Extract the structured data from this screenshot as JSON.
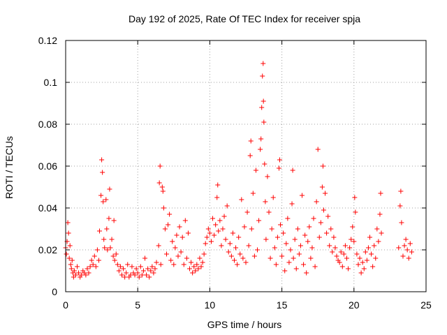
{
  "chart_data": {
    "type": "scatter",
    "title": "Day 192 of 2025, Rate Of TEC Index for receiver spja",
    "xlabel": "GPS time / hours",
    "ylabel": "ROTI / TECUs",
    "xlim": [
      0,
      25
    ],
    "ylim": [
      0,
      0.12
    ],
    "xticks": [
      0,
      5,
      10,
      15,
      20,
      25
    ],
    "yticks": [
      0,
      0.02,
      0.04,
      0.06,
      0.08,
      0.1,
      0.12
    ],
    "xtick_labels": [
      "0",
      "5",
      "10",
      "15",
      "20",
      "25"
    ],
    "ytick_labels": [
      "0",
      "0.02",
      "0.04",
      "0.06",
      "0.08",
      "0.1",
      "0.12"
    ],
    "grid": true,
    "marker": "+",
    "series_color": "#ff0000",
    "series": [
      {
        "name": "",
        "points": [
          [
            0.0,
            0.021
          ],
          [
            0.05,
            0.018
          ],
          [
            0.1,
            0.024
          ],
          [
            0.15,
            0.033
          ],
          [
            0.2,
            0.028
          ],
          [
            0.25,
            0.016
          ],
          [
            0.3,
            0.022
          ],
          [
            0.35,
            0.013
          ],
          [
            0.4,
            0.011
          ],
          [
            0.45,
            0.015
          ],
          [
            0.5,
            0.009
          ],
          [
            0.55,
            0.007
          ],
          [
            0.6,
            0.01
          ],
          [
            0.7,
            0.008
          ],
          [
            0.8,
            0.012
          ],
          [
            0.9,
            0.009
          ],
          [
            1.0,
            0.007
          ],
          [
            1.1,
            0.008
          ],
          [
            1.2,
            0.01
          ],
          [
            1.3,
            0.009
          ],
          [
            1.4,
            0.008
          ],
          [
            1.5,
            0.011
          ],
          [
            1.6,
            0.009
          ],
          [
            1.7,
            0.012
          ],
          [
            1.8,
            0.015
          ],
          [
            1.9,
            0.013
          ],
          [
            2.0,
            0.017
          ],
          [
            2.1,
            0.012
          ],
          [
            2.2,
            0.02
          ],
          [
            2.3,
            0.015
          ],
          [
            2.35,
            0.029
          ],
          [
            2.45,
            0.046
          ],
          [
            2.5,
            0.063
          ],
          [
            2.55,
            0.057
          ],
          [
            2.6,
            0.043
          ],
          [
            2.65,
            0.025
          ],
          [
            2.7,
            0.021
          ],
          [
            2.8,
            0.044
          ],
          [
            2.85,
            0.03
          ],
          [
            2.9,
            0.02
          ],
          [
            3.0,
            0.035
          ],
          [
            3.05,
            0.049
          ],
          [
            3.1,
            0.021
          ],
          [
            3.2,
            0.025
          ],
          [
            3.3,
            0.017
          ],
          [
            3.35,
            0.034
          ],
          [
            3.4,
            0.015
          ],
          [
            3.5,
            0.018
          ],
          [
            3.6,
            0.013
          ],
          [
            3.7,
            0.01
          ],
          [
            3.8,
            0.012
          ],
          [
            3.9,
            0.008
          ],
          [
            4.0,
            0.011
          ],
          [
            4.1,
            0.007
          ],
          [
            4.2,
            0.009
          ],
          [
            4.3,
            0.013
          ],
          [
            4.4,
            0.007
          ],
          [
            4.5,
            0.008
          ],
          [
            4.6,
            0.012
          ],
          [
            4.7,
            0.009
          ],
          [
            4.8,
            0.008
          ],
          [
            4.9,
            0.011
          ],
          [
            5.0,
            0.009
          ],
          [
            5.1,
            0.007
          ],
          [
            5.2,
            0.012
          ],
          [
            5.3,
            0.008
          ],
          [
            5.4,
            0.01
          ],
          [
            5.5,
            0.016
          ],
          [
            5.6,
            0.008
          ],
          [
            5.7,
            0.011
          ],
          [
            5.8,
            0.007
          ],
          [
            5.9,
            0.01
          ],
          [
            6.0,
            0.012
          ],
          [
            6.1,
            0.009
          ],
          [
            6.2,
            0.011
          ],
          [
            6.3,
            0.014
          ],
          [
            6.45,
            0.022
          ],
          [
            6.5,
            0.052
          ],
          [
            6.55,
            0.06
          ],
          [
            6.6,
            0.013
          ],
          [
            6.7,
            0.05
          ],
          [
            6.75,
            0.048
          ],
          [
            6.8,
            0.04
          ],
          [
            6.9,
            0.03
          ],
          [
            7.0,
            0.018
          ],
          [
            7.1,
            0.032
          ],
          [
            7.2,
            0.037
          ],
          [
            7.3,
            0.015
          ],
          [
            7.4,
            0.024
          ],
          [
            7.5,
            0.013
          ],
          [
            7.6,
            0.021
          ],
          [
            7.7,
            0.027
          ],
          [
            7.8,
            0.017
          ],
          [
            7.9,
            0.031
          ],
          [
            8.0,
            0.019
          ],
          [
            8.1,
            0.026
          ],
          [
            8.2,
            0.013
          ],
          [
            8.3,
            0.034
          ],
          [
            8.4,
            0.016
          ],
          [
            8.5,
            0.028
          ],
          [
            8.6,
            0.011
          ],
          [
            8.7,
            0.014
          ],
          [
            8.8,
            0.009
          ],
          [
            8.9,
            0.012
          ],
          [
            9.0,
            0.01
          ],
          [
            9.1,
            0.013
          ],
          [
            9.2,
            0.011
          ],
          [
            9.3,
            0.016
          ],
          [
            9.4,
            0.012
          ],
          [
            9.5,
            0.014
          ],
          [
            9.6,
            0.018
          ],
          [
            9.7,
            0.023
          ],
          [
            9.8,
            0.026
          ],
          [
            9.9,
            0.03
          ],
          [
            10.0,
            0.028
          ],
          [
            10.1,
            0.024
          ],
          [
            10.2,
            0.035
          ],
          [
            10.3,
            0.027
          ],
          [
            10.4,
            0.032
          ],
          [
            10.5,
            0.045
          ],
          [
            10.55,
            0.051
          ],
          [
            10.6,
            0.029
          ],
          [
            10.7,
            0.034
          ],
          [
            10.8,
            0.022
          ],
          [
            10.9,
            0.03
          ],
          [
            11.0,
            0.036
          ],
          [
            11.1,
            0.025
          ],
          [
            11.2,
            0.041
          ],
          [
            11.3,
            0.019
          ],
          [
            11.4,
            0.023
          ],
          [
            11.5,
            0.017
          ],
          [
            11.6,
            0.028
          ],
          [
            11.7,
            0.015
          ],
          [
            11.8,
            0.021
          ],
          [
            11.9,
            0.013
          ],
          [
            12.0,
            0.026
          ],
          [
            12.1,
            0.018
          ],
          [
            12.2,
            0.044
          ],
          [
            12.3,
            0.016
          ],
          [
            12.4,
            0.031
          ],
          [
            12.5,
            0.014
          ],
          [
            12.6,
            0.038
          ],
          [
            12.7,
            0.022
          ],
          [
            12.8,
            0.065
          ],
          [
            12.85,
            0.072
          ],
          [
            12.9,
            0.03
          ],
          [
            13.0,
            0.047
          ],
          [
            13.1,
            0.017
          ],
          [
            13.2,
            0.058
          ],
          [
            13.3,
            0.02
          ],
          [
            13.4,
            0.034
          ],
          [
            13.5,
            0.068
          ],
          [
            13.55,
            0.073
          ],
          [
            13.6,
            0.088
          ],
          [
            13.65,
            0.103
          ],
          [
            13.7,
            0.109
          ],
          [
            13.72,
            0.091
          ],
          [
            13.75,
            0.081
          ],
          [
            13.8,
            0.061
          ],
          [
            13.85,
            0.043
          ],
          [
            13.9,
            0.025
          ],
          [
            14.0,
            0.055
          ],
          [
            14.1,
            0.038
          ],
          [
            14.2,
            0.016
          ],
          [
            14.3,
            0.03
          ],
          [
            14.4,
            0.045
          ],
          [
            14.5,
            0.021
          ],
          [
            14.6,
            0.013
          ],
          [
            14.7,
            0.026
          ],
          [
            14.8,
            0.059
          ],
          [
            14.85,
            0.063
          ],
          [
            14.9,
            0.032
          ],
          [
            15.0,
            0.017
          ],
          [
            15.1,
            0.028
          ],
          [
            15.2,
            0.01
          ],
          [
            15.3,
            0.023
          ],
          [
            15.4,
            0.035
          ],
          [
            15.5,
            0.014
          ],
          [
            15.6,
            0.02
          ],
          [
            15.7,
            0.042
          ],
          [
            15.75,
            0.058
          ],
          [
            15.8,
            0.016
          ],
          [
            15.9,
            0.025
          ],
          [
            16.0,
            0.011
          ],
          [
            16.1,
            0.03
          ],
          [
            16.2,
            0.018
          ],
          [
            16.3,
            0.022
          ],
          [
            16.4,
            0.046
          ],
          [
            16.5,
            0.013
          ],
          [
            16.6,
            0.027
          ],
          [
            16.7,
            0.009
          ],
          [
            16.8,
            0.024
          ],
          [
            16.9,
            0.031
          ],
          [
            17.0,
            0.016
          ],
          [
            17.1,
            0.021
          ],
          [
            17.2,
            0.035
          ],
          [
            17.3,
            0.012
          ],
          [
            17.4,
            0.043
          ],
          [
            17.5,
            0.068
          ],
          [
            17.6,
            0.026
          ],
          [
            17.7,
            0.033
          ],
          [
            17.8,
            0.05
          ],
          [
            17.85,
            0.06
          ],
          [
            17.9,
            0.039
          ],
          [
            18.0,
            0.047
          ],
          [
            18.1,
            0.028
          ],
          [
            18.2,
            0.036
          ],
          [
            18.3,
            0.022
          ],
          [
            18.4,
            0.03
          ],
          [
            18.5,
            0.019
          ],
          [
            18.6,
            0.026
          ],
          [
            18.7,
            0.021
          ],
          [
            18.8,
            0.017
          ],
          [
            18.9,
            0.015
          ],
          [
            19.0,
            0.014
          ],
          [
            19.1,
            0.019
          ],
          [
            19.2,
            0.012
          ],
          [
            19.3,
            0.018
          ],
          [
            19.4,
            0.022
          ],
          [
            19.5,
            0.016
          ],
          [
            19.6,
            0.011
          ],
          [
            19.7,
            0.021
          ],
          [
            19.8,
            0.025
          ],
          [
            19.9,
            0.031
          ],
          [
            20.0,
            0.024
          ],
          [
            20.05,
            0.045
          ],
          [
            20.1,
            0.038
          ],
          [
            20.2,
            0.018
          ],
          [
            20.3,
            0.013
          ],
          [
            20.4,
            0.016
          ],
          [
            20.5,
            0.009
          ],
          [
            20.6,
            0.014
          ],
          [
            20.7,
            0.011
          ],
          [
            20.8,
            0.019
          ],
          [
            20.9,
            0.015
          ],
          [
            21.0,
            0.021
          ],
          [
            21.1,
            0.026
          ],
          [
            21.2,
            0.018
          ],
          [
            21.3,
            0.012
          ],
          [
            21.4,
            0.022
          ],
          [
            21.5,
            0.016
          ],
          [
            21.6,
            0.03
          ],
          [
            21.7,
            0.024
          ],
          [
            21.8,
            0.037
          ],
          [
            21.85,
            0.047
          ],
          [
            21.9,
            0.028
          ],
          [
            23.1,
            0.021
          ],
          [
            23.2,
            0.041
          ],
          [
            23.25,
            0.048
          ],
          [
            23.3,
            0.033
          ],
          [
            23.4,
            0.017
          ],
          [
            23.5,
            0.022
          ],
          [
            23.6,
            0.025
          ],
          [
            23.7,
            0.02
          ],
          [
            23.8,
            0.016
          ],
          [
            23.9,
            0.023
          ],
          [
            24.0,
            0.019
          ]
        ]
      }
    ]
  }
}
